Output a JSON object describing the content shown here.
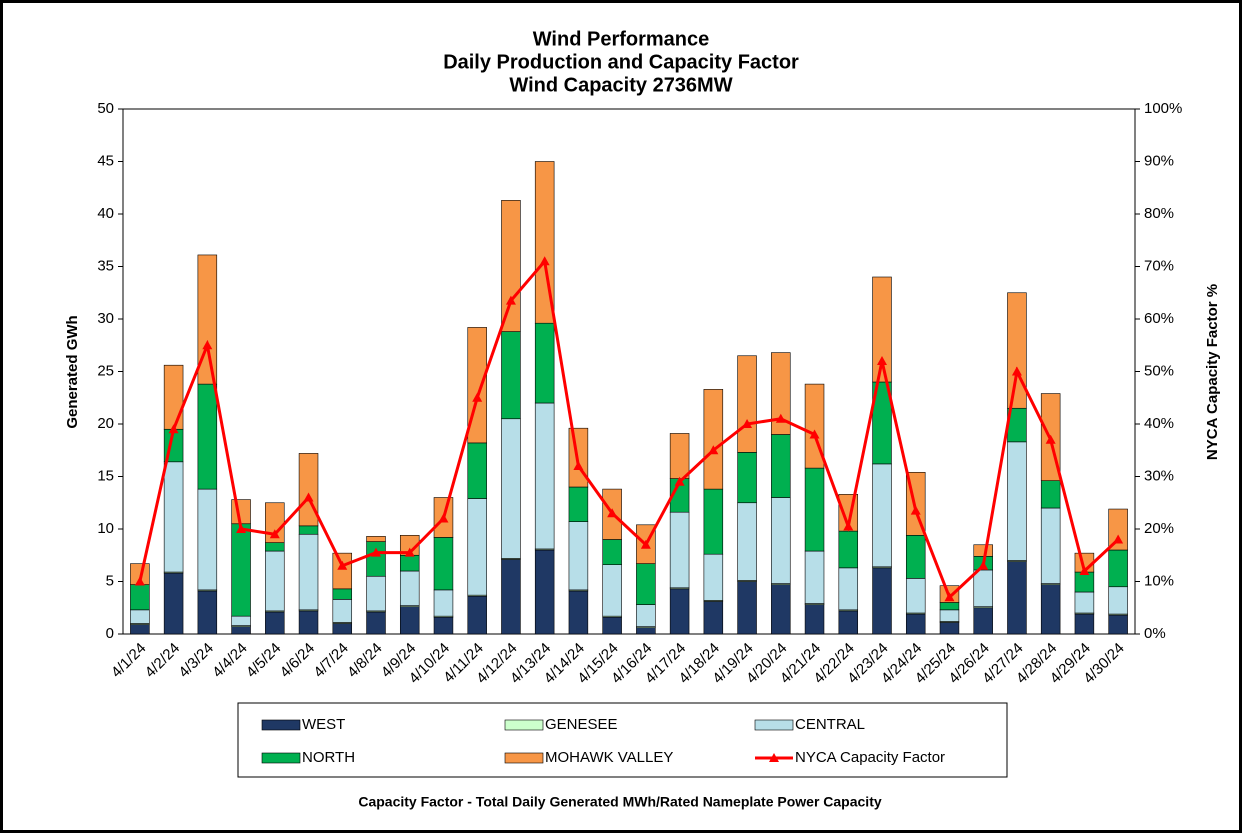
{
  "chart_data": {
    "type": "bar",
    "stacked": true,
    "title": [
      "Wind Performance",
      "Daily Production and Capacity Factor",
      "Wind Capacity 2736MW"
    ],
    "y_label": "Generated GWh",
    "y2_label": "NYCA Capacity Factor %",
    "footnote": "Capacity Factor  - Total Daily Generated MWh/Rated Nameplate Power Capacity",
    "categories": [
      "4/1/24",
      "4/2/24",
      "4/3/24",
      "4/4/24",
      "4/5/24",
      "4/6/24",
      "4/7/24",
      "4/8/24",
      "4/9/24",
      "4/10/24",
      "4/11/24",
      "4/12/24",
      "4/13/24",
      "4/14/24",
      "4/15/24",
      "4/16/24",
      "4/17/24",
      "4/18/24",
      "4/19/24",
      "4/20/24",
      "4/21/24",
      "4/22/24",
      "4/23/24",
      "4/24/24",
      "4/25/24",
      "4/26/24",
      "4/27/24",
      "4/28/24",
      "4/29/24",
      "4/30/24"
    ],
    "series": [
      {
        "name": "WEST",
        "color": "#1f3864",
        "values": [
          0.9,
          5.8,
          4.1,
          0.7,
          2.1,
          2.2,
          1.0,
          2.1,
          2.6,
          1.6,
          3.6,
          7.1,
          8.0,
          4.1,
          1.6,
          0.6,
          4.3,
          3.1,
          5.0,
          4.7,
          2.8,
          2.2,
          6.3,
          1.9,
          1.1,
          2.5,
          6.9,
          4.7,
          1.9,
          1.8
        ]
      },
      {
        "name": "GENESEE",
        "color": "#ccffcc",
        "values": [
          0.1,
          0.1,
          0.1,
          0.1,
          0.1,
          0.1,
          0.1,
          0.1,
          0.1,
          0.1,
          0.1,
          0.1,
          0.1,
          0.1,
          0.1,
          0.1,
          0.1,
          0.1,
          0.1,
          0.1,
          0.1,
          0.1,
          0.1,
          0.1,
          0.1,
          0.1,
          0.1,
          0.1,
          0.1,
          0.1
        ]
      },
      {
        "name": "CENTRAL",
        "color": "#b7dee8",
        "values": [
          1.3,
          10.5,
          9.6,
          0.9,
          5.7,
          7.2,
          2.2,
          3.3,
          3.3,
          2.5,
          9.2,
          13.3,
          13.9,
          6.5,
          4.9,
          2.1,
          7.2,
          4.4,
          7.4,
          8.2,
          5.0,
          4.0,
          9.8,
          3.3,
          1.1,
          3.5,
          11.3,
          7.2,
          2.0,
          2.6
        ]
      },
      {
        "name": "NORTH",
        "color": "#00b050",
        "values": [
          2.4,
          3.1,
          10.0,
          8.8,
          0.8,
          0.8,
          1.0,
          3.3,
          1.5,
          5.0,
          5.3,
          8.3,
          7.6,
          3.3,
          2.4,
          3.9,
          3.2,
          6.2,
          4.8,
          6.0,
          7.9,
          3.5,
          7.8,
          4.1,
          0.7,
          1.3,
          3.2,
          2.6,
          1.9,
          3.5
        ]
      },
      {
        "name": "MOHAWK VALLEY",
        "color": "#f79646",
        "values": [
          2.0,
          6.1,
          12.3,
          2.3,
          3.8,
          6.9,
          3.4,
          0.5,
          1.9,
          3.8,
          11.0,
          12.5,
          15.4,
          5.6,
          4.8,
          3.7,
          4.3,
          9.5,
          9.2,
          7.8,
          8.0,
          3.5,
          10.0,
          6.0,
          1.6,
          1.1,
          11.0,
          8.3,
          1.8,
          3.9
        ]
      },
      {
        "name": "NYCA Capacity Factor",
        "color": "#ff0000",
        "type": "line",
        "axis": "y2",
        "values": [
          10,
          39,
          55,
          20,
          19,
          26,
          13,
          15.5,
          15.5,
          22,
          45,
          63.5,
          71,
          32,
          23,
          17,
          29,
          35,
          40,
          41,
          38,
          20.5,
          52,
          23.5,
          7,
          13,
          50,
          37,
          12,
          18
        ]
      }
    ],
    "ylim": [
      0,
      50
    ],
    "yticks": [
      0,
      5,
      10,
      15,
      20,
      25,
      30,
      35,
      40,
      45,
      50
    ],
    "y2lim": [
      0,
      100
    ],
    "y2ticks": [
      {
        "value": 0,
        "label": "0%"
      },
      {
        "value": 10,
        "label": "10%"
      },
      {
        "value": 20,
        "label": "20%"
      },
      {
        "value": 30,
        "label": "30%"
      },
      {
        "value": 40,
        "label": "40%"
      },
      {
        "value": 50,
        "label": "50%"
      },
      {
        "value": 60,
        "label": "60%"
      },
      {
        "value": 70,
        "label": "70%"
      },
      {
        "value": 80,
        "label": "80%"
      },
      {
        "value": 90,
        "label": "90%"
      },
      {
        "value": 100,
        "label": "100%"
      }
    ]
  }
}
